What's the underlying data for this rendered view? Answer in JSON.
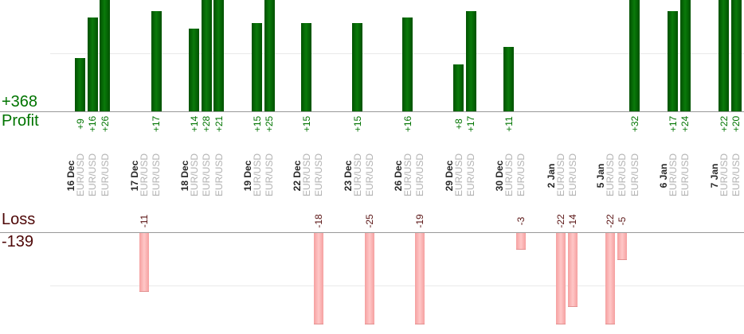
{
  "summary": {
    "profit_total": "+368",
    "profit_label": "Profit",
    "loss_label": "Loss",
    "loss_total": "-139"
  },
  "chart_data": {
    "type": "bar",
    "description": "Per-trade results grouped by date; profits drawn upward in green panel, losses drawn downward in pink panel",
    "instrument": "EUR/USD",
    "panels": {
      "profit": {
        "label": "Profit",
        "total": 368,
        "bar_color": "#0a7a0a",
        "text_color": "#007400",
        "gridline_value": 10
      },
      "loss": {
        "label": "Loss",
        "total": -139,
        "bar_color": "#ffc7c7",
        "text_color": "#5a1414",
        "gridline_value": -10
      }
    },
    "groups": [
      {
        "date": "16 Dec",
        "trades": [
          {
            "instrument": "EUR/USD",
            "value": 9
          },
          {
            "instrument": "EUR/USD",
            "value": 16
          },
          {
            "instrument": "EUR/USD",
            "value": 26
          }
        ]
      },
      {
        "date": "17 Dec",
        "trades": [
          {
            "instrument": "EUR/USD",
            "value": -11
          },
          {
            "instrument": "EUR/USD",
            "value": 17
          }
        ]
      },
      {
        "date": "18 Dec",
        "trades": [
          {
            "instrument": "EUR/USD",
            "value": 14
          },
          {
            "instrument": "EUR/USD",
            "value": 28
          },
          {
            "instrument": "EUR/USD",
            "value": 21
          }
        ]
      },
      {
        "date": "19 Dec",
        "trades": [
          {
            "instrument": "EUR/USD",
            "value": 15
          },
          {
            "instrument": "EUR/USD",
            "value": 25
          }
        ]
      },
      {
        "date": "22 Dec",
        "trades": [
          {
            "instrument": "EUR/USD",
            "value": 15
          },
          {
            "instrument": "EUR/USD",
            "value": -18
          }
        ]
      },
      {
        "date": "23 Dec",
        "trades": [
          {
            "instrument": "EUR/USD",
            "value": 15
          },
          {
            "instrument": "EUR/USD",
            "value": -25
          }
        ]
      },
      {
        "date": "26 Dec",
        "trades": [
          {
            "instrument": "EUR/USD",
            "value": 16
          },
          {
            "instrument": "EUR/USD",
            "value": -19
          }
        ]
      },
      {
        "date": "29 Dec",
        "trades": [
          {
            "instrument": "EUR/USD",
            "value": 8
          },
          {
            "instrument": "EUR/USD",
            "value": 17
          }
        ]
      },
      {
        "date": "30 Dec",
        "trades": [
          {
            "instrument": "EUR/USD",
            "value": 11
          },
          {
            "instrument": "EUR/USD",
            "value": -3
          }
        ]
      },
      {
        "date": "2 Jan",
        "trades": [
          {
            "instrument": "EUR/USD",
            "value": -22
          },
          {
            "instrument": "EUR/USD",
            "value": -14
          }
        ]
      },
      {
        "date": "5 Jan",
        "trades": [
          {
            "instrument": "EUR/USD",
            "value": -22
          },
          {
            "instrument": "EUR/USD",
            "value": -5
          },
          {
            "instrument": "EUR/USD",
            "value": 32
          }
        ]
      },
      {
        "date": "6 Jan",
        "trades": [
          {
            "instrument": "EUR/USD",
            "value": 17
          },
          {
            "instrument": "EUR/USD",
            "value": 24
          }
        ]
      },
      {
        "date": "7 Jan",
        "trades": [
          {
            "instrument": "EUR/USD",
            "value": 22
          },
          {
            "instrument": "EUR/USD",
            "value": 20
          }
        ]
      }
    ]
  },
  "colors": {
    "profit_bar": "#0a7a0a",
    "loss_bar": "#ffc7c7",
    "profit_text": "#007400",
    "loss_text": "#5a1414",
    "date_text": "#282828",
    "instrument_text": "#b2b2b2",
    "axis_line": "#999999",
    "gridline": "#e9e9e9"
  }
}
